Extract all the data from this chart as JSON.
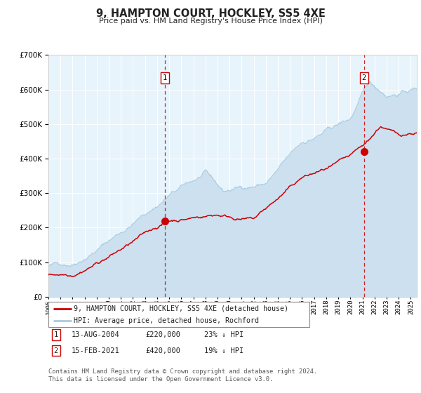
{
  "title": "9, HAMPTON COURT, HOCKLEY, SS5 4XE",
  "subtitle": "Price paid vs. HM Land Registry's House Price Index (HPI)",
  "hpi_label": "HPI: Average price, detached house, Rochford",
  "price_label": "9, HAMPTON COURT, HOCKLEY, SS5 4XE (detached house)",
  "hpi_color": "#a8cce0",
  "hpi_fill_color": "#cce0f0",
  "price_color": "#cc0000",
  "marker_color": "#cc0000",
  "vline_color": "#cc0000",
  "plot_bg": "#e8f4fc",
  "annotation1": {
    "label": "1",
    "date": "13-AUG-2004",
    "price": "£220,000",
    "note": "23% ↓ HPI",
    "x_year": 2004.62
  },
  "annotation2": {
    "label": "2",
    "date": "15-FEB-2021",
    "price": "£420,000",
    "note": "19% ↓ HPI",
    "x_year": 2021.12
  },
  "ylim": [
    0,
    700000
  ],
  "yticks": [
    0,
    100000,
    200000,
    300000,
    400000,
    500000,
    600000,
    700000
  ],
  "ytick_labels": [
    "£0",
    "£100K",
    "£200K",
    "£300K",
    "£400K",
    "£500K",
    "£600K",
    "£700K"
  ],
  "footer": "Contains HM Land Registry data © Crown copyright and database right 2024.\nThis data is licensed under the Open Government Licence v3.0.",
  "xlim_start": 1995.0,
  "xlim_end": 2025.5
}
